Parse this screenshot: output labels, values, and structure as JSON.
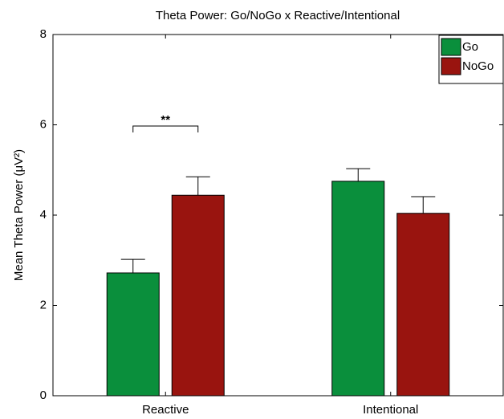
{
  "chart_data": {
    "type": "bar",
    "title": "Theta Power: Go/NoGo x Reactive/Intentional",
    "y_label": "Mean Theta Power (μV²)",
    "categories": [
      "Reactive",
      "Intentional"
    ],
    "series": [
      {
        "name": "Go",
        "color": "#0a8f3c",
        "values": [
          2.72,
          4.75
        ],
        "errors": [
          0.3,
          0.28
        ]
      },
      {
        "name": "NoGo",
        "color": "#99140f",
        "values": [
          4.44,
          4.04
        ],
        "errors": [
          0.41,
          0.37
        ]
      }
    ],
    "annotations": [
      {
        "text": "**",
        "category": 0
      }
    ],
    "ylim": [
      0,
      8
    ],
    "yticks": [
      0,
      2,
      4,
      6,
      8
    ],
    "legend": "upper right"
  }
}
